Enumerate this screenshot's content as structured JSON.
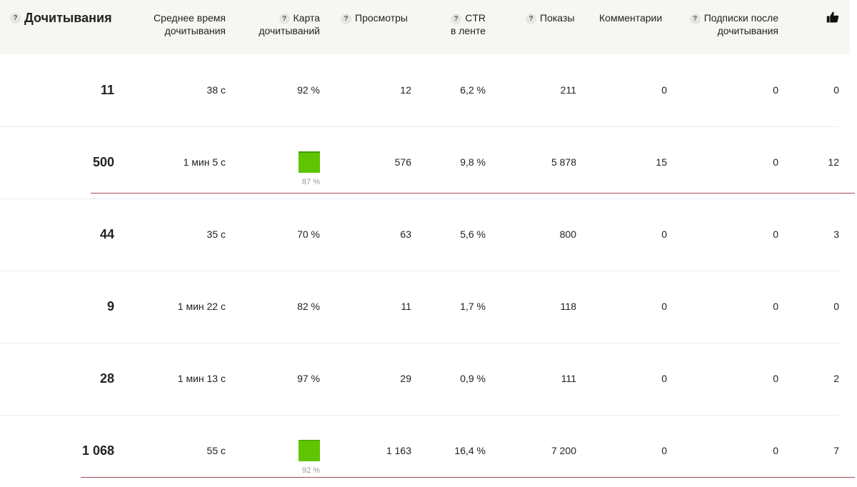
{
  "header": {
    "reads": "Дочитывания",
    "avg_time_l1": "Среднее время",
    "avg_time_l2": "дочитывания",
    "map_l1": "Карта",
    "map_l2": "дочитываний",
    "views": "Просмотры",
    "ctr_l1": "CTR",
    "ctr_l2": "в ленте",
    "impressions": "Показы",
    "comments": "Комментарии",
    "subs_l1": "Подписки после",
    "subs_l2": "дочитывания",
    "help_glyph": "?",
    "likes_icon": "thumbs-up-icon"
  },
  "colors": {
    "header_bg": "#f6f6f3",
    "bar_green": "#5ec500",
    "accent_line": "#a34a55"
  },
  "rows": [
    {
      "reads": "11",
      "avg_time": "38 с",
      "map": "92 %",
      "map_bar": false,
      "map_level": 0.92,
      "views": "12",
      "ctr": "6,2 %",
      "impressions": "211",
      "comments": "0",
      "subs": "0",
      "likes": "0"
    },
    {
      "reads": "500",
      "avg_time": "1 мин 5 с",
      "map": "87 %",
      "map_bar": true,
      "map_level": 0.87,
      "views": "576",
      "ctr": "9,8 %",
      "impressions": "5 878",
      "comments": "15",
      "subs": "0",
      "likes": "12"
    },
    {
      "reads": "44",
      "avg_time": "35 с",
      "map": "70 %",
      "map_bar": false,
      "map_level": 0.7,
      "views": "63",
      "ctr": "5,6 %",
      "impressions": "800",
      "comments": "0",
      "subs": "0",
      "likes": "3"
    },
    {
      "reads": "9",
      "avg_time": "1 мин 22 с",
      "map": "82 %",
      "map_bar": false,
      "map_level": 0.82,
      "views": "11",
      "ctr": "1,7 %",
      "impressions": "118",
      "comments": "0",
      "subs": "0",
      "likes": "0"
    },
    {
      "reads": "28",
      "avg_time": "1 мин 13 с",
      "map": "97 %",
      "map_bar": false,
      "map_level": 0.97,
      "views": "29",
      "ctr": "0,9 %",
      "impressions": "111",
      "comments": "0",
      "subs": "0",
      "likes": "2"
    },
    {
      "reads": "1 068",
      "avg_time": "55 с",
      "map": "92 %",
      "map_bar": true,
      "map_level": 0.92,
      "views": "1 163",
      "ctr": "16,4 %",
      "impressions": "7 200",
      "comments": "0",
      "subs": "0",
      "likes": "7"
    }
  ]
}
